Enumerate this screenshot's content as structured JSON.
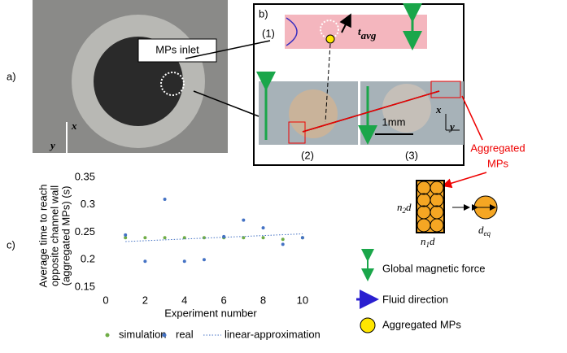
{
  "panels": {
    "a": "a)",
    "b": "b)",
    "c": "c)"
  },
  "photo_a": {
    "inlet": "MPs inlet",
    "x": "x",
    "y": "y"
  },
  "panel_b": {
    "step1": "(1)",
    "step2": "(2)",
    "step3": "(3)",
    "t": "t",
    "t_sub": "avg",
    "scale": "1mm",
    "x": "x",
    "y": "y"
  },
  "aggregated": [
    "Aggregated",
    "MPs"
  ],
  "schematic": {
    "n": "n",
    "sub2": "2",
    "sub1": "1",
    "d": "d",
    "deq_sub": "eq"
  },
  "legend_right": [
    "Global magnetic force",
    "Fluid direction",
    "Aggregated MPs"
  ],
  "chart_data": {
    "type": "scatter",
    "y_label": [
      "Average time to reach",
      "opposite channel wall",
      "(aggregated MPs) (s)"
    ],
    "x_label": "Experiment number",
    "xlim": [
      0,
      10.5
    ],
    "xticks": [
      0,
      2,
      4,
      6,
      8,
      10
    ],
    "ylim": [
      0.15,
      0.35
    ],
    "yticks": [
      0.35,
      0.3,
      0.25,
      0.2,
      0.15
    ],
    "series": [
      {
        "name": "simulation",
        "color": "#70ad47",
        "x": [
          1,
          2,
          3,
          4,
          5,
          6,
          7,
          8,
          9,
          10
        ],
        "values": [
          0.24,
          0.24,
          0.24,
          0.24,
          0.24,
          0.24,
          0.24,
          0.24,
          0.237,
          0.24
        ]
      },
      {
        "name": "real",
        "color": "#4472c4",
        "x": [
          1,
          2,
          3,
          4,
          5,
          6,
          7,
          8,
          9,
          10
        ],
        "values": [
          0.245,
          0.197,
          0.31,
          0.197,
          0.2,
          0.242,
          0.272,
          0.258,
          0.228,
          0.24
        ]
      },
      {
        "name": "linear-approximation",
        "color": "#4472c4",
        "style": "dotted",
        "x": [
          1,
          10
        ],
        "values": [
          0.233,
          0.247
        ]
      }
    ]
  }
}
